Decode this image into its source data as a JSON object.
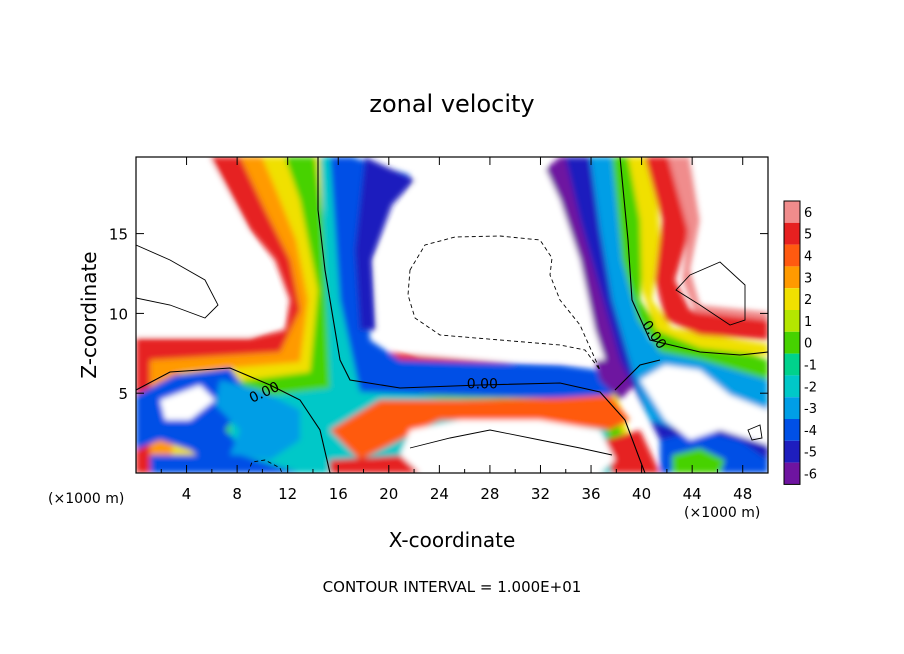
{
  "chart_data": {
    "type": "heatmap",
    "title": "zonal velocity",
    "xlabel": "X-coordinate",
    "ylabel": "Z-coordinate",
    "x_unit_label": "(×1000 m)",
    "y_unit_label": "(×1000 m)",
    "xlim": [
      0,
      50
    ],
    "ylim": [
      0,
      19.8
    ],
    "x_ticks": [
      4,
      8,
      12,
      16,
      20,
      24,
      28,
      32,
      36,
      40,
      44,
      48
    ],
    "y_ticks": [
      5,
      10,
      15
    ],
    "colorbar": {
      "levels": [
        6,
        5,
        4,
        3,
        2,
        1,
        0,
        -1,
        -2,
        -3,
        -4,
        -5,
        -6
      ],
      "colors": [
        "#f08c8c",
        "#e62020",
        "#ff5a10",
        "#ff9a00",
        "#f0e000",
        "#b4e600",
        "#46d200",
        "#00d28c",
        "#00c8c8",
        "#009ee6",
        "#0050e6",
        "#1e1ebe",
        "#6e14a0"
      ]
    },
    "contour_labels": [
      {
        "text": "0.00",
        "x": 10.3,
        "y": 4.8,
        "angle": -25
      },
      {
        "text": "0.00",
        "x": 27.4,
        "y": 5.3,
        "angle": 0
      },
      {
        "text": "0.00",
        "x": 40.7,
        "y": 8.5,
        "angle": 55
      }
    ],
    "contour_interval_text": "CONTOUR INTERVAL = 1.000E+01"
  }
}
